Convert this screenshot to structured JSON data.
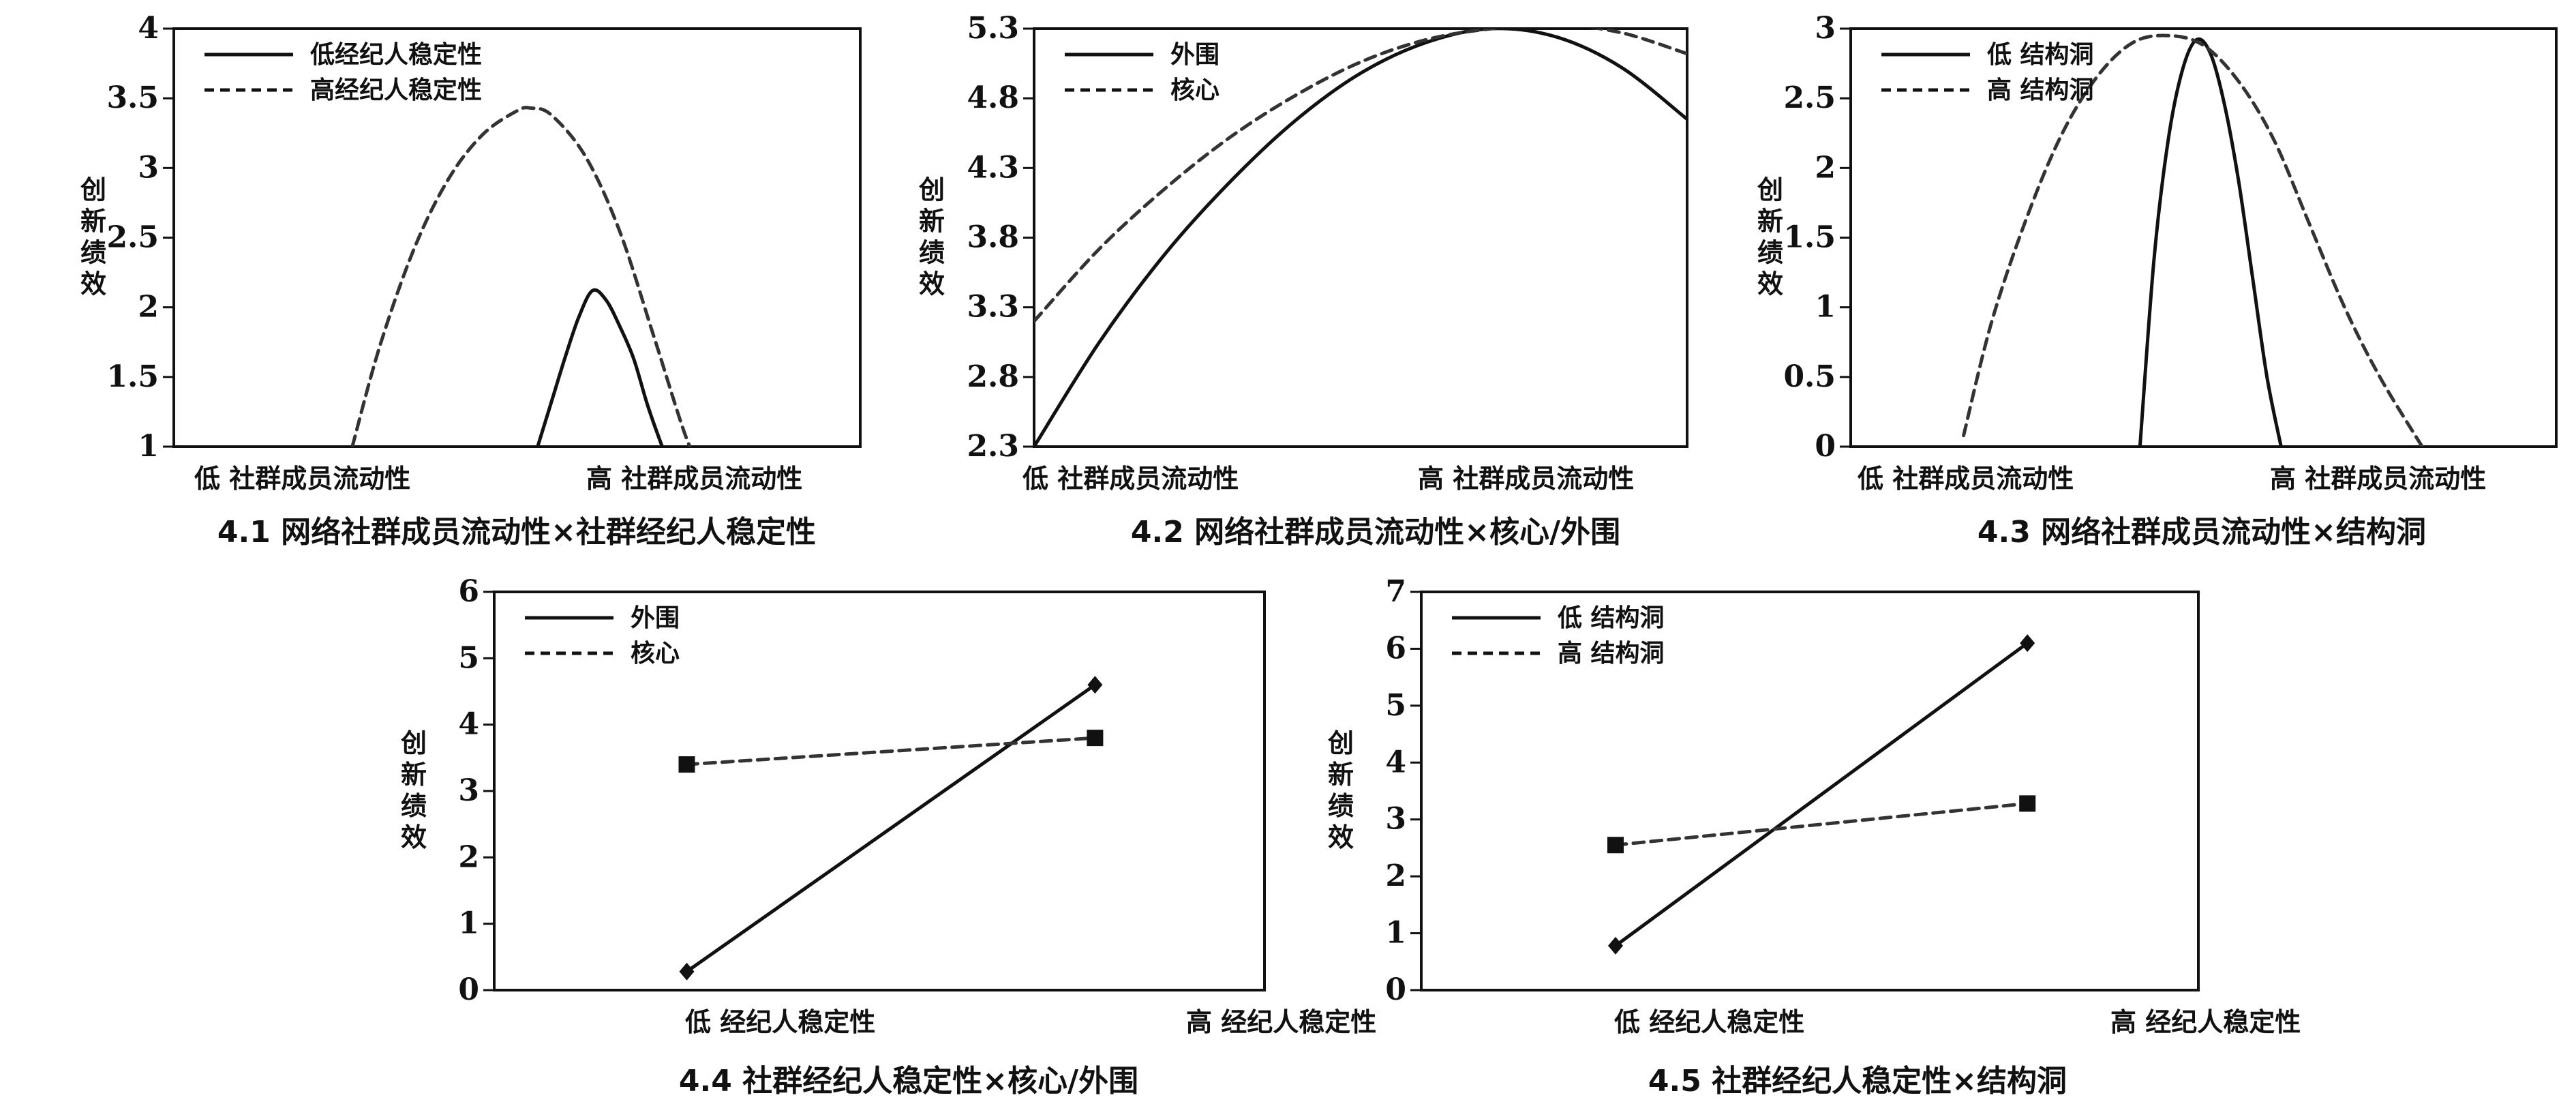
{
  "chart_data": [
    {
      "type": "line",
      "caption": "4.1 网络社群成员流动性×社群经纪人稳定性",
      "ylabel": "创新绩效",
      "categories": [
        "低 社群成员流动性",
        "高 社群成员流动性"
      ],
      "ylim": [
        1,
        4
      ],
      "yticks": [
        "1",
        "1.5",
        "2",
        "2.5",
        "3",
        "3.5",
        "4"
      ],
      "legend_placement": "top-left",
      "series": [
        {
          "name": "低经纪人稳定性",
          "dash": "solid",
          "x": [
            0.53,
            0.55,
            0.57,
            0.59,
            0.61,
            0.63,
            0.65,
            0.67,
            0.69,
            0.71,
            0.72
          ],
          "y": [
            1.0,
            1.32,
            1.64,
            1.93,
            2.12,
            2.05,
            1.86,
            1.63,
            1.3,
            1.02,
            0.9
          ]
        },
        {
          "name": "高经纪人稳定性",
          "dash": "dashed",
          "x": [
            0.26,
            0.3,
            0.35,
            0.4,
            0.45,
            0.5,
            0.52,
            0.55,
            0.6,
            0.65,
            0.7,
            0.75,
            0.77
          ],
          "y": [
            1.0,
            1.72,
            2.42,
            2.92,
            3.24,
            3.41,
            3.43,
            3.38,
            3.08,
            2.54,
            1.78,
            1.02,
            0.95
          ]
        }
      ]
    },
    {
      "type": "line",
      "caption": "4.2 网络社群成员流动性×核心/外围",
      "ylabel": "创新绩效",
      "categories": [
        "低 社群成员流动性",
        "高 社群成员流动性"
      ],
      "ylim": [
        2.3,
        5.3
      ],
      "yticks": [
        "2.3",
        "2.8",
        "3.3",
        "3.8",
        "4.3",
        "4.8",
        "5.3"
      ],
      "legend_placement": "top-left",
      "series": [
        {
          "name": "外围",
          "dash": "solid",
          "x": [
            0.0,
            0.1,
            0.2,
            0.3,
            0.4,
            0.5,
            0.6,
            0.7,
            0.8,
            0.9,
            1.0
          ],
          "y": [
            2.3,
            3.05,
            3.68,
            4.2,
            4.64,
            4.98,
            5.2,
            5.3,
            5.24,
            5.02,
            4.65
          ]
        },
        {
          "name": "核心",
          "dash": "dashed",
          "x": [
            0.0,
            0.1,
            0.2,
            0.3,
            0.4,
            0.5,
            0.6,
            0.7,
            0.8,
            0.9,
            1.0
          ],
          "y": [
            3.2,
            3.72,
            4.15,
            4.52,
            4.82,
            5.06,
            5.22,
            5.3,
            5.33,
            5.27,
            5.12
          ]
        }
      ]
    },
    {
      "type": "line",
      "caption": "4.3 网络社群成员流动性×结构洞",
      "ylabel": "创新绩效",
      "categories": [
        "低 社群成员流动性",
        "高 社群成员流动性"
      ],
      "ylim": [
        0,
        3
      ],
      "yticks": [
        "0",
        "0.5",
        "1",
        "1.5",
        "2",
        "2.5",
        "3"
      ],
      "legend_placement": "top-left",
      "series": [
        {
          "name": "低 结构洞",
          "dash": "solid",
          "x": [
            0.41,
            0.43,
            0.45,
            0.47,
            0.49,
            0.51,
            0.53,
            0.55,
            0.57,
            0.59,
            0.61
          ],
          "y": [
            0.0,
            1.35,
            2.2,
            2.7,
            2.92,
            2.82,
            2.45,
            1.9,
            1.2,
            0.5,
            0.0
          ]
        },
        {
          "name": "高 结构洞",
          "dash": "dashed",
          "x": [
            0.16,
            0.2,
            0.25,
            0.3,
            0.35,
            0.4,
            0.45,
            0.5,
            0.55,
            0.6,
            0.65,
            0.7,
            0.75,
            0.81
          ],
          "y": [
            0.08,
            0.9,
            1.65,
            2.25,
            2.66,
            2.9,
            2.95,
            2.88,
            2.62,
            2.2,
            1.6,
            1.0,
            0.5,
            0.0
          ]
        }
      ]
    },
    {
      "type": "line",
      "caption": "4.4 社群经纪人稳定性×核心/外围",
      "ylabel": "创新绩效",
      "categories": [
        "低 经纪人稳定性",
        "高 经纪人稳定性"
      ],
      "ylim": [
        0,
        6
      ],
      "yticks": [
        "0",
        "1",
        "2",
        "3",
        "4",
        "5",
        "6"
      ],
      "legend_placement": "top-left",
      "series": [
        {
          "name": "外围",
          "dash": "solid",
          "marker": "diamond",
          "values": [
            0.28,
            4.6
          ]
        },
        {
          "name": "核心",
          "dash": "dashed",
          "marker": "square",
          "values": [
            3.4,
            3.8
          ]
        }
      ]
    },
    {
      "type": "line",
      "caption": "4.5 社群经纪人稳定性×结构洞",
      "ylabel": "创新绩效",
      "categories": [
        "低 经纪人稳定性",
        "高 经纪人稳定性"
      ],
      "ylim": [
        0,
        7
      ],
      "yticks": [
        "0",
        "1",
        "2",
        "3",
        "4",
        "5",
        "6",
        "7"
      ],
      "legend_placement": "top-left",
      "series": [
        {
          "name": "低 结构洞",
          "dash": "solid",
          "marker": "diamond",
          "values": [
            0.78,
            6.1
          ]
        },
        {
          "name": "高 结构洞",
          "dash": "dashed",
          "marker": "square",
          "values": [
            2.55,
            3.28
          ]
        }
      ]
    }
  ]
}
